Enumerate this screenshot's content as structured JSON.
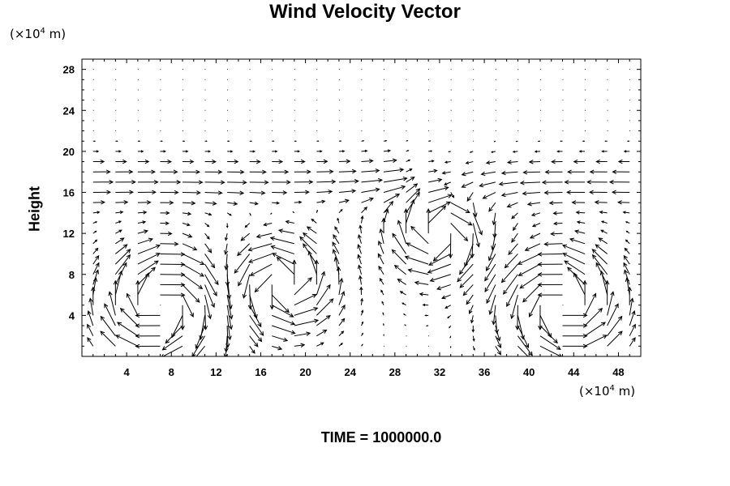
{
  "chart_data": {
    "type": "quiver",
    "title": "Wind Velocity Vector",
    "xlabel": "",
    "ylabel": "Height",
    "x_unit_base": "(×10",
    "x_unit_exp": "4",
    "x_unit_tail": " m)",
    "y_unit_base": "(×10",
    "y_unit_exp": "4",
    "y_unit_tail": " m)",
    "xlim": [
      0,
      50
    ],
    "ylim": [
      0,
      29
    ],
    "x_ticks": [
      4,
      8,
      12,
      16,
      20,
      24,
      28,
      32,
      36,
      40,
      44,
      48
    ],
    "y_ticks": [
      4,
      8,
      12,
      16,
      20,
      24,
      28
    ],
    "x_tick_labels": [
      "4",
      "8",
      "12",
      "16",
      "20",
      "24",
      "28",
      "32",
      "36",
      "40",
      "44",
      "48"
    ],
    "y_tick_labels": [
      "4",
      "8",
      "12",
      "16",
      "20",
      "24",
      "28"
    ],
    "grid_x_spacing": 2,
    "grid_y_spacing": 1,
    "vortices": [
      {
        "x": 7,
        "y": 5,
        "strength": 1.0,
        "direction": "clockwise"
      },
      {
        "x": 43,
        "y": 5,
        "strength": 1.0,
        "direction": "counterclockwise"
      },
      {
        "x": 18,
        "y": 7,
        "strength": 0.6,
        "direction": "counterclockwise"
      },
      {
        "x": 32,
        "y": 12,
        "strength": 0.5,
        "direction": "clockwise"
      }
    ],
    "upper_flow": [
      {
        "x_range": [
          0,
          28
        ],
        "y": 17,
        "direction": "east"
      },
      {
        "x_range": [
          32,
          50
        ],
        "y": 17,
        "direction": "west"
      }
    ]
  },
  "footer": {
    "time_label": "TIME = 1000000.0"
  }
}
